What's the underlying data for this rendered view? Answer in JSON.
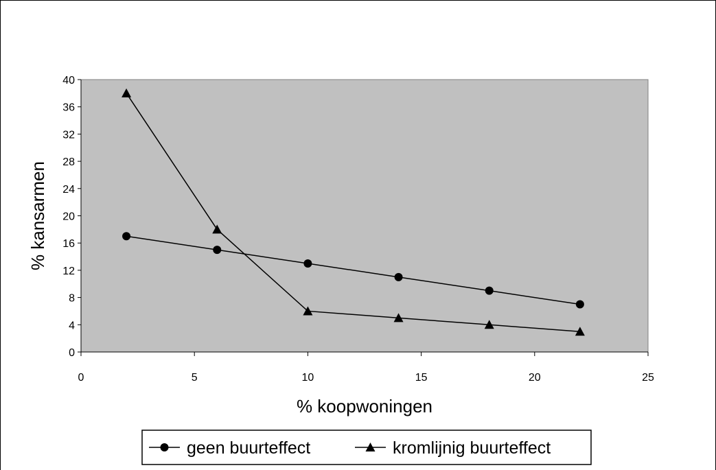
{
  "chart_data": {
    "type": "line",
    "xlabel": "% koopwoningen",
    "ylabel": "% kansarmen",
    "xlim": [
      0,
      25
    ],
    "ylim": [
      0,
      40
    ],
    "xticks": [
      0,
      5,
      10,
      15,
      20,
      25
    ],
    "yticks": [
      0,
      4,
      8,
      12,
      16,
      20,
      24,
      28,
      32,
      36,
      40
    ],
    "plot_background": "#C0C0C0",
    "line_color": "#000000",
    "grid": false,
    "legend_position": "bottom",
    "series": [
      {
        "name": "geen buurteffect",
        "marker": "circle",
        "x": [
          2,
          6,
          10,
          14,
          18,
          22
        ],
        "y": [
          17,
          15,
          13,
          11,
          9,
          7
        ]
      },
      {
        "name": "kromlijnig buurteffect",
        "marker": "triangle",
        "x": [
          2,
          6,
          10,
          14,
          18,
          22
        ],
        "y": [
          38,
          18,
          6,
          5,
          4,
          3
        ]
      }
    ]
  }
}
